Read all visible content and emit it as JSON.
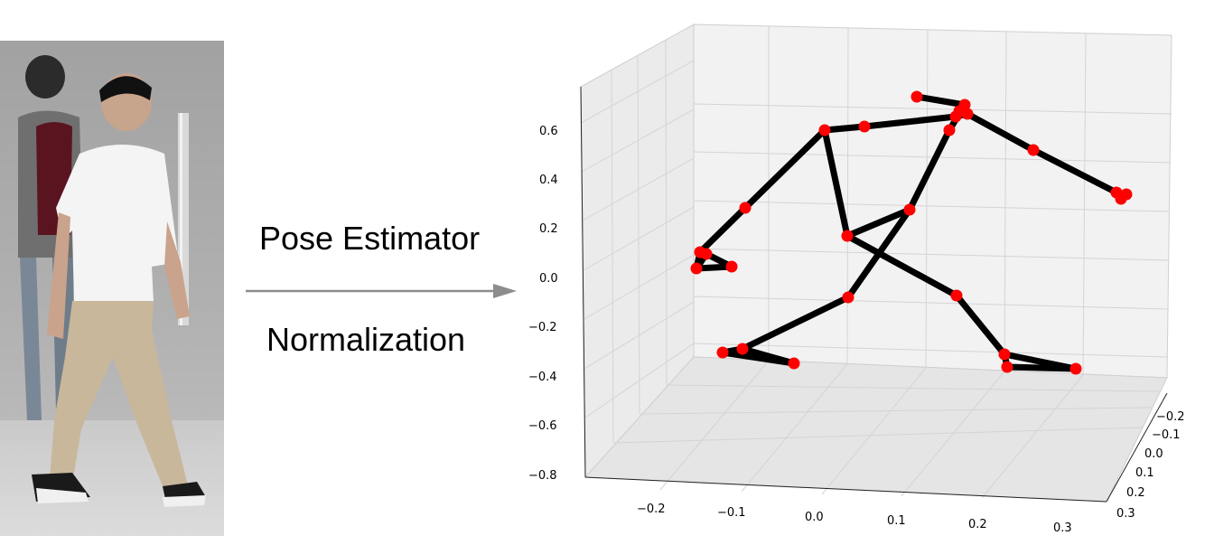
{
  "process": {
    "step_1_label": "Pose Estimator",
    "step_2_label": "Normalization"
  },
  "photo": {
    "icon": "walking-person-photo"
  },
  "chart_data": {
    "type": "scatter",
    "projection": "3d",
    "grid": true,
    "marker_color": "#ff0000",
    "bone_color": "#000000",
    "vertical_axis_ticks": [
      "0.6",
      "0.4",
      "0.2",
      "0.0",
      "−0.2",
      "−0.4",
      "−0.6",
      "−0.8"
    ],
    "depth_axis_ticks": [
      "−0.2",
      "−0.1",
      "0.0",
      "0.1",
      "0.2",
      "0.3"
    ],
    "bottom_axis_ticks": [
      "−0.2",
      "−0.1",
      "0.0",
      "0.1",
      "0.2",
      "0.3"
    ],
    "zlim": [
      -0.85,
      0.7
    ]
  }
}
